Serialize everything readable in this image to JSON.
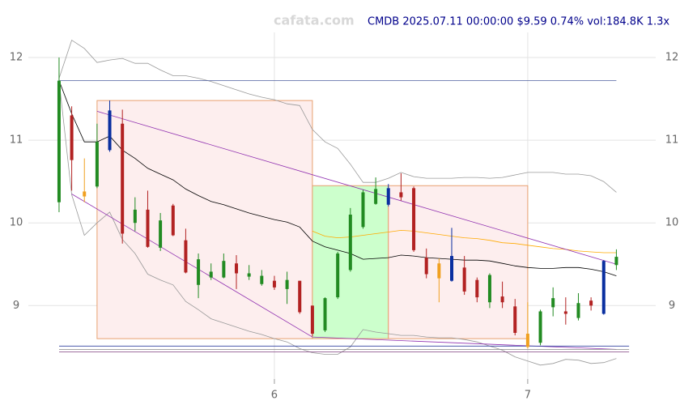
{
  "chart_data": {
    "type": "candlestick",
    "watermark": "cafata.com",
    "title": "CMDB 2025.07.11 00:00:00 $9.59 0.74% vol:184.8K 1.3x",
    "xlim": [
      5.115,
      7.403
    ],
    "xticks": [
      6,
      7
    ],
    "ylim": [
      8.19,
      12.5
    ],
    "yticks": [
      9,
      10,
      11,
      12
    ],
    "grid": true,
    "x": [
      5.15,
      5.2,
      5.25,
      5.3,
      5.35,
      5.4,
      5.45,
      5.5,
      5.55,
      5.6,
      5.65,
      5.7,
      5.75,
      5.8,
      5.85,
      5.9,
      5.95,
      6.0,
      6.05,
      6.1,
      6.15,
      6.2,
      6.25,
      6.3,
      6.35,
      6.4,
      6.45,
      6.5,
      6.55,
      6.6,
      6.65,
      6.7,
      6.75,
      6.8,
      6.85,
      6.9,
      6.95,
      7.0,
      7.05,
      7.1,
      7.15,
      7.2,
      7.25,
      7.3,
      7.35
    ],
    "open": [
      10.25,
      11.3,
      10.38,
      10.44,
      10.88,
      11.2,
      10.0,
      10.16,
      9.7,
      10.21,
      9.79,
      9.25,
      9.34,
      9.34,
      9.51,
      9.35,
      9.26,
      9.3,
      9.2,
      9.3,
      9.0,
      8.7,
      9.1,
      9.43,
      9.95,
      10.23,
      10.22,
      10.37,
      10.42,
      9.58,
      9.51,
      9.3,
      9.46,
      9.31,
      9.04,
      9.11,
      8.99,
      8.66,
      8.55,
      8.98,
      8.93,
      8.85,
      9.06,
      8.9,
      9.49
    ],
    "high": [
      12.0,
      11.41,
      10.78,
      11.2,
      11.48,
      11.37,
      10.31,
      10.39,
      10.12,
      10.23,
      9.93,
      9.63,
      9.51,
      9.63,
      9.61,
      9.49,
      9.43,
      9.36,
      9.41,
      9.3,
      9.0,
      9.1,
      9.65,
      10.18,
      10.4,
      10.55,
      10.47,
      10.6,
      10.44,
      9.69,
      9.57,
      9.94,
      9.6,
      9.34,
      9.39,
      9.29,
      9.08,
      9.04,
      8.95,
      9.22,
      9.1,
      9.15,
      9.1,
      9.55,
      9.68
    ],
    "low": [
      10.13,
      10.39,
      10.25,
      10.42,
      10.86,
      9.75,
      9.9,
      9.7,
      9.66,
      9.84,
      9.39,
      9.09,
      9.31,
      9.33,
      9.2,
      9.31,
      9.24,
      9.19,
      9.02,
      8.9,
      8.63,
      8.68,
      9.08,
      9.41,
      9.93,
      10.22,
      10.2,
      10.27,
      9.65,
      9.33,
      9.04,
      9.29,
      9.13,
      9.04,
      8.97,
      8.97,
      8.64,
      8.48,
      8.52,
      8.87,
      8.77,
      8.82,
      8.94,
      8.89,
      9.43
    ],
    "close": [
      11.72,
      10.76,
      10.32,
      10.98,
      11.36,
      9.87,
      10.16,
      9.71,
      10.03,
      9.85,
      9.4,
      9.56,
      9.41,
      9.54,
      9.39,
      9.39,
      9.36,
      9.22,
      9.31,
      8.92,
      8.66,
      9.09,
      9.63,
      10.1,
      10.37,
      10.41,
      10.42,
      10.31,
      9.67,
      9.38,
      9.33,
      9.6,
      9.17,
      9.1,
      9.37,
      9.04,
      8.67,
      8.5,
      8.93,
      9.09,
      8.9,
      9.03,
      9.0,
      9.54,
      9.59
    ],
    "colors": [
      "#228b22",
      "#b22222",
      "#f0a020",
      "#228b22",
      "#0a2fa0",
      "#b22222",
      "#228b22",
      "#b22222",
      "#228b22",
      "#b22222",
      "#b22222",
      "#228b22",
      "#228b22",
      "#228b22",
      "#b22222",
      "#228b22",
      "#228b22",
      "#b22222",
      "#228b22",
      "#b22222",
      "#b22222",
      "#228b22",
      "#228b22",
      "#228b22",
      "#228b22",
      "#228b22",
      "#0a2fa0",
      "#b22222",
      "#b22222",
      "#b22222",
      "#f0a020",
      "#0a2fa0",
      "#b22222",
      "#b22222",
      "#228b22",
      "#b22222",
      "#b22222",
      "#f0a020",
      "#228b22",
      "#228b22",
      "#b22222",
      "#228b22",
      "#b22222",
      "#0a2fa0",
      "#228b22"
    ],
    "boxes": [
      {
        "x": [
          5.3,
          6.15
        ],
        "y": [
          8.6,
          11.48
        ],
        "fill": "#fdeeee",
        "stroke": "#e8a070"
      },
      {
        "x": [
          6.15,
          6.45
        ],
        "y": [
          8.6,
          10.45
        ],
        "fill": "#ccffcc",
        "stroke": "#e8a070"
      },
      {
        "x": [
          6.45,
          7.0
        ],
        "y": [
          8.6,
          10.45
        ],
        "fill": "#fdeeee",
        "stroke": "#e8a070"
      }
    ],
    "lines": [
      {
        "color": "#999999",
        "values": [
          11.75,
          12.21,
          12.11,
          11.94,
          11.97,
          11.99,
          11.93,
          11.93,
          11.85,
          11.78,
          11.78,
          11.75,
          11.71,
          11.66,
          11.61,
          11.56,
          11.52,
          11.49,
          11.44,
          11.42,
          11.13,
          10.98,
          10.9,
          10.71,
          10.49,
          10.49,
          10.54,
          10.61,
          10.56,
          10.54,
          10.54,
          10.54,
          10.55,
          10.55,
          10.54,
          10.55,
          10.58,
          10.61,
          10.61,
          10.61,
          10.59,
          10.59,
          10.57,
          10.5,
          10.37
        ]
      },
      {
        "color": "#999999",
        "values": [
          11.72,
          10.34,
          9.85,
          10.0,
          10.13,
          9.8,
          9.63,
          9.38,
          9.31,
          9.25,
          9.05,
          8.95,
          8.84,
          8.79,
          8.74,
          8.69,
          8.65,
          8.6,
          8.56,
          8.48,
          8.43,
          8.41,
          8.41,
          8.5,
          8.71,
          8.68,
          8.66,
          8.64,
          8.64,
          8.62,
          8.61,
          8.61,
          8.59,
          8.56,
          8.51,
          8.46,
          8.38,
          8.33,
          8.28,
          8.3,
          8.35,
          8.34,
          8.3,
          8.31,
          8.36
        ]
      },
      {
        "color": "#000000",
        "values": [
          11.72,
          11.32,
          10.98,
          10.98,
          11.05,
          10.88,
          10.78,
          10.66,
          10.59,
          10.52,
          10.41,
          10.33,
          10.26,
          10.22,
          10.17,
          10.12,
          10.08,
          10.04,
          10.01,
          9.95,
          9.78,
          9.71,
          9.67,
          9.63,
          9.56,
          9.57,
          9.58,
          9.61,
          9.6,
          9.58,
          9.57,
          9.56,
          9.55,
          9.55,
          9.54,
          9.51,
          9.48,
          9.46,
          9.45,
          9.45,
          9.46,
          9.46,
          9.44,
          9.41,
          9.36
        ]
      },
      {
        "color": "#ffaa00",
        "values": [
          null,
          null,
          null,
          null,
          null,
          null,
          null,
          null,
          null,
          null,
          null,
          null,
          null,
          null,
          null,
          null,
          null,
          null,
          null,
          null,
          9.9,
          9.84,
          9.82,
          9.83,
          9.85,
          9.87,
          9.89,
          9.91,
          9.9,
          9.88,
          9.86,
          9.84,
          9.82,
          9.81,
          9.79,
          9.76,
          9.75,
          9.73,
          9.71,
          9.69,
          9.68,
          9.66,
          9.65,
          9.64,
          9.64
        ]
      }
    ],
    "segments": [
      {
        "x": [
          5.15,
          7.35
        ],
        "y": [
          11.72,
          11.72
        ],
        "color": "#5060a0"
      },
      {
        "x": [
          5.3,
          7.35
        ],
        "y": [
          11.35,
          9.5
        ],
        "color": "#9030b0"
      },
      {
        "x": [
          5.2,
          6.15,
          7.35
        ],
        "y": [
          10.35,
          8.62,
          8.47
        ],
        "color": "#9030b0"
      },
      {
        "x": [
          5.15,
          7.4
        ],
        "y": [
          8.51,
          8.51
        ],
        "color": "#3040a0"
      },
      {
        "x": [
          5.15,
          7.4
        ],
        "y": [
          8.47,
          8.47
        ],
        "color": "#888888"
      },
      {
        "x": [
          5.15,
          7.4
        ],
        "y": [
          8.44,
          8.44
        ],
        "color": "#804080"
      }
    ]
  }
}
